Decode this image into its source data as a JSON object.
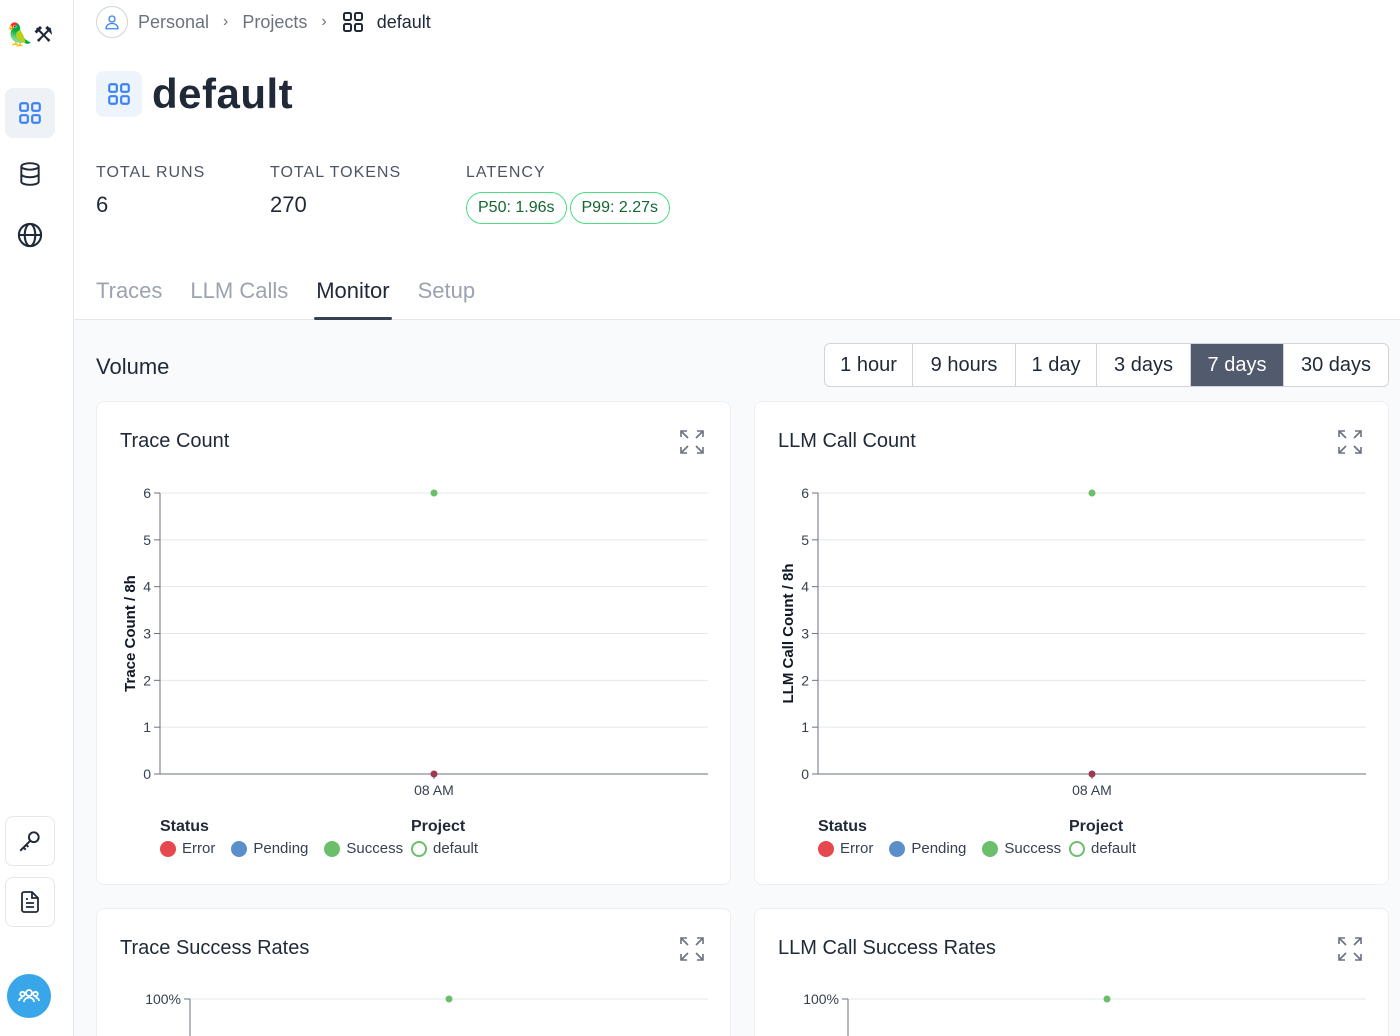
{
  "sidebar": {
    "logo_icons": "🦜⚒"
  },
  "breadcrumb": {
    "items": [
      "Personal",
      "Projects",
      "default"
    ]
  },
  "project": {
    "title": "default"
  },
  "stats": {
    "total_runs_label": "TOTAL RUNS",
    "total_runs_value": "6",
    "total_tokens_label": "TOTAL TOKENS",
    "total_tokens_value": "270",
    "latency_label": "LATENCY",
    "p50": "P50: 1.96s",
    "p99": "P99: 2.27s"
  },
  "tabs": [
    "Traces",
    "LLM Calls",
    "Monitor",
    "Setup"
  ],
  "active_tab": "Monitor",
  "volume": {
    "title": "Volume",
    "ranges": [
      "1 hour",
      "9 hours",
      "1 day",
      "3 days",
      "7 days",
      "30 days"
    ],
    "active_range": "7 days"
  },
  "colors": {
    "error": "#e5484d",
    "pending": "#5b8fc9",
    "success": "#6bbf6b",
    "default": "#6bbf6b"
  },
  "legend": {
    "status_title": "Status",
    "project_title": "Project",
    "error": "Error",
    "pending": "Pending",
    "success": "Success",
    "default": "default"
  },
  "chart_data": [
    {
      "type": "line",
      "title": "Trace Count",
      "ylabel": "Trace Count / 8h",
      "x": [
        "08 AM"
      ],
      "ylim": [
        0,
        6
      ],
      "yticks": [
        "0",
        "1",
        "2",
        "3",
        "4",
        "5",
        "6"
      ],
      "series": [
        {
          "name": "Success",
          "values": [
            6
          ]
        },
        {
          "name": "Error",
          "values": [
            0
          ]
        }
      ]
    },
    {
      "type": "line",
      "title": "LLM Call Count",
      "ylabel": "LLM Call Count / 8h",
      "x": [
        "08 AM"
      ],
      "ylim": [
        0,
        6
      ],
      "yticks": [
        "0",
        "1",
        "2",
        "3",
        "4",
        "5",
        "6"
      ],
      "series": [
        {
          "name": "Success",
          "values": [
            6
          ]
        },
        {
          "name": "Error",
          "values": [
            0
          ]
        }
      ]
    },
    {
      "type": "line",
      "title": "Trace Success Rates",
      "yticks": [
        "100%"
      ],
      "series": [
        {
          "name": "Success",
          "values": [
            100
          ]
        }
      ]
    },
    {
      "type": "line",
      "title": "LLM Call Success Rates",
      "yticks": [
        "100%"
      ],
      "series": [
        {
          "name": "Success",
          "values": [
            100
          ]
        }
      ]
    }
  ]
}
